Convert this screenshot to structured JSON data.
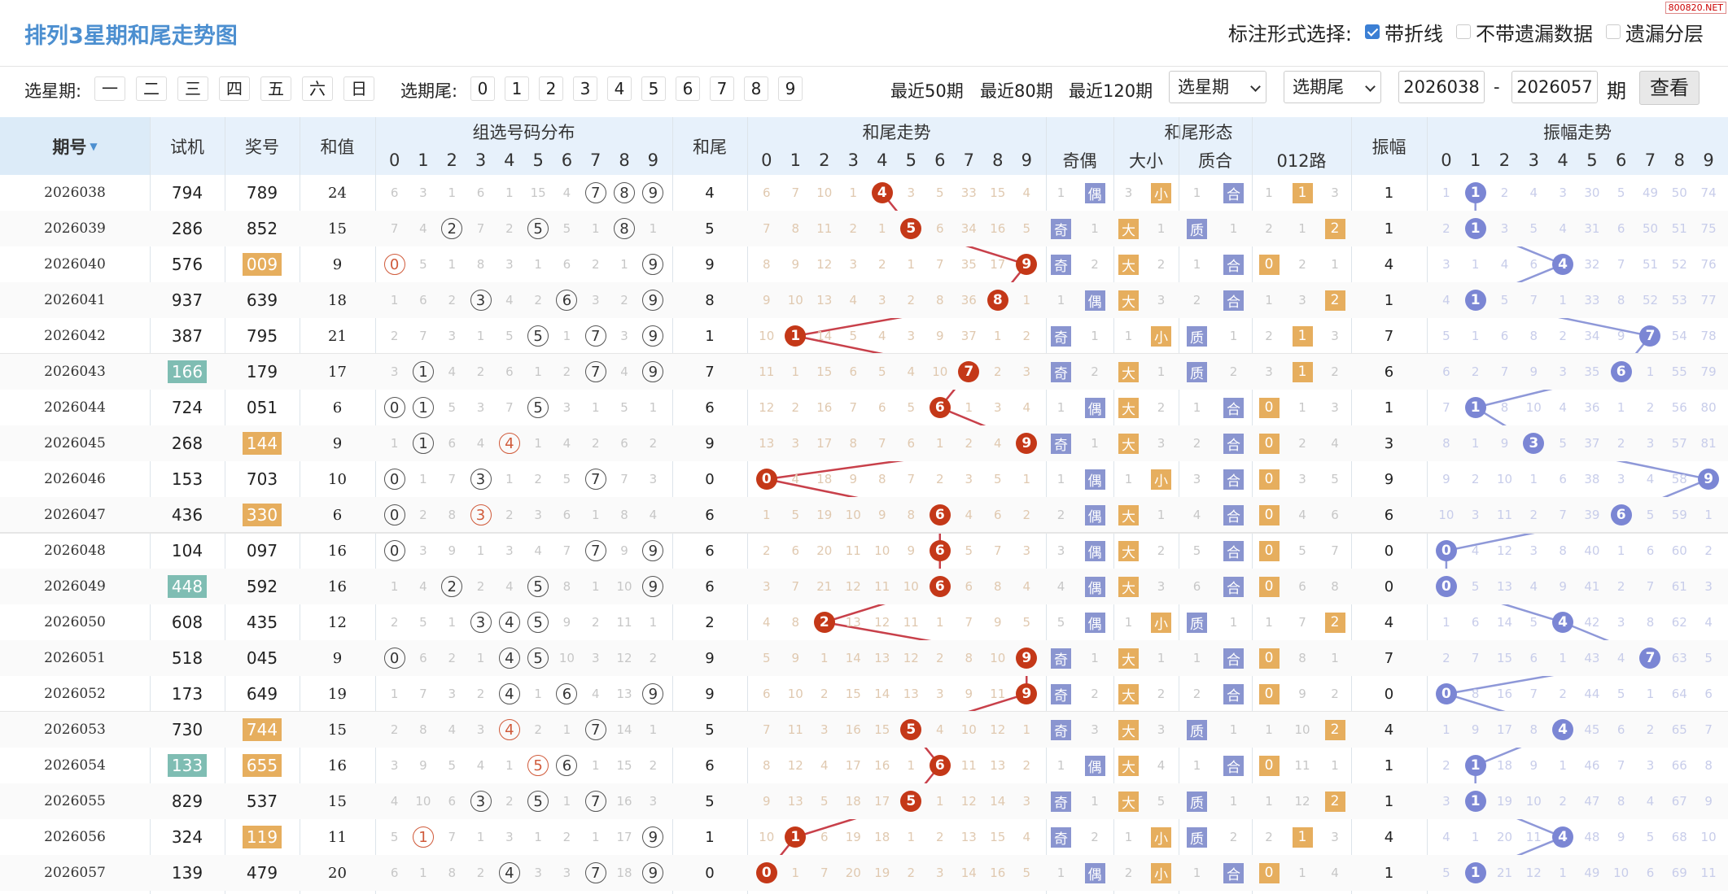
{
  "title": "排列3星期和尾走势图",
  "watermark": "800820.NET",
  "mark_label": "标注形式选择:",
  "mark_options": [
    {
      "label": "带折线",
      "checked": true
    },
    {
      "label": "不带遗漏数据",
      "checked": false
    },
    {
      "label": "遗漏分层",
      "checked": false
    }
  ],
  "filter": {
    "week_label": "选星期:",
    "weeks": [
      "一",
      "二",
      "三",
      "四",
      "五",
      "六",
      "日"
    ],
    "tail_label": "选期尾:",
    "tails": [
      "0",
      "1",
      "2",
      "3",
      "4",
      "5",
      "6",
      "7",
      "8",
      "9"
    ],
    "quick": [
      "最近50期",
      "最近80期",
      "最近120期"
    ],
    "week_select": "选星期",
    "tail_select": "选期尾",
    "from": "2026038",
    "to": "2026057",
    "dash": "-",
    "period": "期",
    "query": "查看"
  },
  "headers": {
    "issue": "期号",
    "trial": "试机",
    "prize": "奖号",
    "sum": "和值",
    "dist": "组选号码分布",
    "tail": "和尾",
    "trend": "和尾走势",
    "form": "和尾形态",
    "odd_even": "奇偶",
    "big_small": "大小",
    "prime": "质合",
    "route": "012路",
    "amp": "振幅",
    "amp_trend": "振幅走势",
    "digits": [
      "0",
      "1",
      "2",
      "3",
      "4",
      "5",
      "6",
      "7",
      "8",
      "9"
    ]
  },
  "colors": {
    "accent": "#4c8fd0",
    "tail_ball": "#c43818",
    "amp_ball": "#7b86d4",
    "tag_blue": "#8a95d0",
    "tag_orange": "#e6ae5e",
    "trial_hl": "#7fbdb3",
    "prize_hl": "#e6ae5e"
  },
  "rows": [
    {
      "issue": "2026038",
      "trial": "794",
      "trial_hl": false,
      "prize": "789",
      "prize_hl": false,
      "sum": "24",
      "tail": 4,
      "dist": [
        "6",
        "3",
        "1",
        "6",
        "1",
        "15",
        "4",
        "@7",
        "@8",
        "@9"
      ],
      "trend": [
        "6",
        "7",
        "10",
        "1",
        "*",
        "3",
        "5",
        "33",
        "15",
        "4"
      ],
      "form": [
        "1",
        "偶",
        "3",
        "小",
        "1",
        "合",
        "1",
        "1",
        "3"
      ],
      "amp": 1,
      "amp_trend": [
        "1",
        "*",
        "2",
        "4",
        "3",
        "30",
        "5",
        "49",
        "50",
        "74"
      ]
    },
    {
      "issue": "2026039",
      "trial": "286",
      "trial_hl": false,
      "prize": "852",
      "prize_hl": false,
      "sum": "15",
      "tail": 5,
      "dist": [
        "7",
        "4",
        "@2",
        "7",
        "2",
        "@5",
        "5",
        "1",
        "@8",
        "1"
      ],
      "trend": [
        "7",
        "8",
        "11",
        "2",
        "1",
        "*",
        "6",
        "34",
        "16",
        "5"
      ],
      "form": [
        "奇",
        "1",
        "大",
        "1",
        "质",
        "1",
        "2",
        "1",
        "2"
      ],
      "amp": 1,
      "amp_trend": [
        "2",
        "*",
        "3",
        "5",
        "4",
        "31",
        "6",
        "50",
        "51",
        "75"
      ]
    },
    {
      "issue": "2026040",
      "trial": "576",
      "trial_hl": false,
      "prize": "009",
      "prize_hl": true,
      "sum": "9",
      "tail": 9,
      "dist": [
        "!0",
        "5",
        "1",
        "8",
        "3",
        "1",
        "6",
        "2",
        "1",
        "@9"
      ],
      "trend": [
        "8",
        "9",
        "12",
        "3",
        "2",
        "1",
        "7",
        "35",
        "17",
        "*"
      ],
      "form": [
        "奇",
        "2",
        "大",
        "2",
        "1",
        "合",
        "0",
        "2",
        "1"
      ],
      "amp": 4,
      "amp_trend": [
        "3",
        "1",
        "4",
        "6",
        "*",
        "32",
        "7",
        "51",
        "52",
        "76"
      ]
    },
    {
      "issue": "2026041",
      "trial": "937",
      "trial_hl": false,
      "prize": "639",
      "prize_hl": false,
      "sum": "18",
      "tail": 8,
      "dist": [
        "1",
        "6",
        "2",
        "@3",
        "4",
        "2",
        "@6",
        "3",
        "2",
        "@9"
      ],
      "trend": [
        "9",
        "10",
        "13",
        "4",
        "3",
        "2",
        "8",
        "36",
        "*",
        "1"
      ],
      "form": [
        "1",
        "偶",
        "大",
        "3",
        "2",
        "合",
        "1",
        "3",
        "2"
      ],
      "amp": 1,
      "amp_trend": [
        "4",
        "*",
        "5",
        "7",
        "1",
        "33",
        "8",
        "52",
        "53",
        "77"
      ]
    },
    {
      "issue": "2026042",
      "trial": "387",
      "trial_hl": false,
      "prize": "795",
      "prize_hl": false,
      "sum": "21",
      "tail": 1,
      "dist": [
        "2",
        "7",
        "3",
        "1",
        "5",
        "@5",
        "1",
        "@7",
        "3",
        "@9"
      ],
      "trend": [
        "10",
        "*",
        "14",
        "5",
        "4",
        "3",
        "9",
        "37",
        "1",
        "2"
      ],
      "form": [
        "奇",
        "1",
        "1",
        "小",
        "质",
        "1",
        "2",
        "1",
        "3"
      ],
      "amp": 7,
      "amp_trend": [
        "5",
        "1",
        "6",
        "8",
        "2",
        "34",
        "9",
        "*",
        "54",
        "78"
      ]
    },
    {
      "issue": "2026043",
      "trial": "166",
      "trial_hl": true,
      "prize": "179",
      "prize_hl": false,
      "sum": "17",
      "tail": 7,
      "dist": [
        "3",
        "@1",
        "4",
        "2",
        "6",
        "1",
        "2",
        "@7",
        "4",
        "@9"
      ],
      "trend": [
        "11",
        "1",
        "15",
        "6",
        "5",
        "4",
        "10",
        "*",
        "2",
        "3"
      ],
      "form": [
        "奇",
        "2",
        "大",
        "1",
        "质",
        "2",
        "3",
        "1",
        "2"
      ],
      "amp": 6,
      "amp_trend": [
        "6",
        "2",
        "7",
        "9",
        "3",
        "35",
        "*",
        "1",
        "55",
        "79"
      ]
    },
    {
      "issue": "2026044",
      "trial": "724",
      "trial_hl": false,
      "prize": "051",
      "prize_hl": false,
      "sum": "6",
      "tail": 6,
      "dist": [
        "@0",
        "@1",
        "5",
        "3",
        "7",
        "@5",
        "3",
        "1",
        "5",
        "1"
      ],
      "trend": [
        "12",
        "2",
        "16",
        "7",
        "6",
        "5",
        "*",
        "1",
        "3",
        "4"
      ],
      "form": [
        "1",
        "偶",
        "大",
        "2",
        "1",
        "合",
        "0",
        "1",
        "3"
      ],
      "amp": 1,
      "amp_trend": [
        "7",
        "*",
        "8",
        "10",
        "4",
        "36",
        "1",
        "2",
        "56",
        "80"
      ]
    },
    {
      "issue": "2026045",
      "trial": "268",
      "trial_hl": false,
      "prize": "144",
      "prize_hl": true,
      "sum": "9",
      "tail": 9,
      "dist": [
        "1",
        "@1",
        "6",
        "4",
        "!4",
        "1",
        "4",
        "2",
        "6",
        "2"
      ],
      "trend": [
        "13",
        "3",
        "17",
        "8",
        "7",
        "6",
        "1",
        "2",
        "4",
        "*"
      ],
      "form": [
        "奇",
        "1",
        "大",
        "3",
        "2",
        "合",
        "0",
        "2",
        "4"
      ],
      "amp": 3,
      "amp_trend": [
        "8",
        "1",
        "9",
        "*",
        "5",
        "37",
        "2",
        "3",
        "57",
        "81"
      ]
    },
    {
      "issue": "2026046",
      "trial": "153",
      "trial_hl": false,
      "prize": "703",
      "prize_hl": false,
      "sum": "10",
      "tail": 0,
      "dist": [
        "@0",
        "1",
        "7",
        "@3",
        "1",
        "2",
        "5",
        "@7",
        "7",
        "3"
      ],
      "trend": [
        "*",
        "4",
        "18",
        "9",
        "8",
        "7",
        "2",
        "3",
        "5",
        "1"
      ],
      "form": [
        "1",
        "偶",
        "1",
        "小",
        "3",
        "合",
        "0",
        "3",
        "5"
      ],
      "amp": 9,
      "amp_trend": [
        "9",
        "2",
        "10",
        "1",
        "6",
        "38",
        "3",
        "4",
        "58",
        "*"
      ]
    },
    {
      "issue": "2026047",
      "trial": "436",
      "trial_hl": false,
      "prize": "330",
      "prize_hl": true,
      "sum": "6",
      "tail": 6,
      "dist": [
        "@0",
        "2",
        "8",
        "!3",
        "2",
        "3",
        "6",
        "1",
        "8",
        "4"
      ],
      "trend": [
        "1",
        "5",
        "19",
        "10",
        "9",
        "8",
        "*",
        "4",
        "6",
        "2"
      ],
      "form": [
        "2",
        "偶",
        "大",
        "1",
        "4",
        "合",
        "0",
        "4",
        "6"
      ],
      "amp": 6,
      "amp_trend": [
        "10",
        "3",
        "11",
        "2",
        "7",
        "39",
        "*",
        "5",
        "59",
        "1"
      ]
    },
    {
      "issue": "2026048",
      "trial": "104",
      "trial_hl": false,
      "prize": "097",
      "prize_hl": false,
      "sum": "16",
      "tail": 6,
      "dist": [
        "@0",
        "3",
        "9",
        "1",
        "3",
        "4",
        "7",
        "@7",
        "9",
        "@9"
      ],
      "trend": [
        "2",
        "6",
        "20",
        "11",
        "10",
        "9",
        "*",
        "5",
        "7",
        "3"
      ],
      "form": [
        "3",
        "偶",
        "大",
        "2",
        "5",
        "合",
        "0",
        "5",
        "7"
      ],
      "amp": 0,
      "amp_trend": [
        "*",
        "4",
        "12",
        "3",
        "8",
        "40",
        "1",
        "6",
        "60",
        "2"
      ]
    },
    {
      "issue": "2026049",
      "trial": "448",
      "trial_hl": true,
      "prize": "592",
      "prize_hl": false,
      "sum": "16",
      "tail": 6,
      "dist": [
        "1",
        "4",
        "@2",
        "2",
        "4",
        "@5",
        "8",
        "1",
        "10",
        "@9"
      ],
      "trend": [
        "3",
        "7",
        "21",
        "12",
        "11",
        "10",
        "*",
        "6",
        "8",
        "4"
      ],
      "form": [
        "4",
        "偶",
        "大",
        "3",
        "6",
        "合",
        "0",
        "6",
        "8"
      ],
      "amp": 0,
      "amp_trend": [
        "*",
        "5",
        "13",
        "4",
        "9",
        "41",
        "2",
        "7",
        "61",
        "3"
      ]
    },
    {
      "issue": "2026050",
      "trial": "608",
      "trial_hl": false,
      "prize": "435",
      "prize_hl": false,
      "sum": "12",
      "tail": 2,
      "dist": [
        "2",
        "5",
        "1",
        "@3",
        "@4",
        "@5",
        "9",
        "2",
        "11",
        "1"
      ],
      "trend": [
        "4",
        "8",
        "*",
        "13",
        "12",
        "11",
        "1",
        "7",
        "9",
        "5"
      ],
      "form": [
        "5",
        "偶",
        "1",
        "小",
        "质",
        "1",
        "1",
        "7",
        "2"
      ],
      "amp": 4,
      "amp_trend": [
        "1",
        "6",
        "14",
        "5",
        "*",
        "42",
        "3",
        "8",
        "62",
        "4"
      ]
    },
    {
      "issue": "2026051",
      "trial": "518",
      "trial_hl": false,
      "prize": "045",
      "prize_hl": false,
      "sum": "9",
      "tail": 9,
      "dist": [
        "@0",
        "6",
        "2",
        "1",
        "@4",
        "@5",
        "10",
        "3",
        "12",
        "2"
      ],
      "trend": [
        "5",
        "9",
        "1",
        "14",
        "13",
        "12",
        "2",
        "8",
        "10",
        "*"
      ],
      "form": [
        "奇",
        "1",
        "大",
        "1",
        "1",
        "合",
        "0",
        "8",
        "1"
      ],
      "amp": 7,
      "amp_trend": [
        "2",
        "7",
        "15",
        "6",
        "1",
        "43",
        "4",
        "*",
        "63",
        "5"
      ]
    },
    {
      "issue": "2026052",
      "trial": "173",
      "trial_hl": false,
      "prize": "649",
      "prize_hl": false,
      "sum": "19",
      "tail": 9,
      "dist": [
        "1",
        "7",
        "3",
        "2",
        "@4",
        "1",
        "@6",
        "4",
        "13",
        "@9"
      ],
      "trend": [
        "6",
        "10",
        "2",
        "15",
        "14",
        "13",
        "3",
        "9",
        "11",
        "*"
      ],
      "form": [
        "奇",
        "2",
        "大",
        "2",
        "2",
        "合",
        "0",
        "9",
        "2"
      ],
      "amp": 0,
      "amp_trend": [
        "*",
        "8",
        "16",
        "7",
        "2",
        "44",
        "5",
        "1",
        "64",
        "6"
      ]
    },
    {
      "issue": "2026053",
      "trial": "730",
      "trial_hl": false,
      "prize": "744",
      "prize_hl": true,
      "sum": "15",
      "tail": 5,
      "dist": [
        "2",
        "8",
        "4",
        "3",
        "!4",
        "2",
        "1",
        "@7",
        "14",
        "1"
      ],
      "trend": [
        "7",
        "11",
        "3",
        "16",
        "15",
        "*",
        "4",
        "10",
        "12",
        "1"
      ],
      "form": [
        "奇",
        "3",
        "大",
        "3",
        "质",
        "1",
        "1",
        "10",
        "2"
      ],
      "amp": 4,
      "amp_trend": [
        "1",
        "9",
        "17",
        "8",
        "*",
        "45",
        "6",
        "2",
        "65",
        "7"
      ]
    },
    {
      "issue": "2026054",
      "trial": "133",
      "trial_hl": true,
      "prize": "655",
      "prize_hl": true,
      "sum": "16",
      "tail": 6,
      "dist": [
        "3",
        "9",
        "5",
        "4",
        "1",
        "!5",
        "@6",
        "1",
        "15",
        "2"
      ],
      "trend": [
        "8",
        "12",
        "4",
        "17",
        "16",
        "1",
        "*",
        "11",
        "13",
        "2"
      ],
      "form": [
        "1",
        "偶",
        "大",
        "4",
        "1",
        "合",
        "0",
        "11",
        "1"
      ],
      "amp": 1,
      "amp_trend": [
        "2",
        "*",
        "18",
        "9",
        "1",
        "46",
        "7",
        "3",
        "66",
        "8"
      ]
    },
    {
      "issue": "2026055",
      "trial": "829",
      "trial_hl": false,
      "prize": "537",
      "prize_hl": false,
      "sum": "15",
      "tail": 5,
      "dist": [
        "4",
        "10",
        "6",
        "@3",
        "2",
        "@5",
        "1",
        "@7",
        "16",
        "3"
      ],
      "trend": [
        "9",
        "13",
        "5",
        "18",
        "17",
        "*",
        "1",
        "12",
        "14",
        "3"
      ],
      "form": [
        "奇",
        "1",
        "大",
        "5",
        "质",
        "1",
        "1",
        "12",
        "2"
      ],
      "amp": 1,
      "amp_trend": [
        "3",
        "*",
        "19",
        "10",
        "2",
        "47",
        "8",
        "4",
        "67",
        "9"
      ]
    },
    {
      "issue": "2026056",
      "trial": "324",
      "trial_hl": false,
      "prize": "119",
      "prize_hl": true,
      "sum": "11",
      "tail": 1,
      "dist": [
        "5",
        "!1",
        "7",
        "1",
        "3",
        "1",
        "2",
        "1",
        "17",
        "@9"
      ],
      "trend": [
        "10",
        "*",
        "6",
        "19",
        "18",
        "1",
        "2",
        "13",
        "15",
        "4"
      ],
      "form": [
        "奇",
        "2",
        "1",
        "小",
        "质",
        "2",
        "2",
        "1",
        "3"
      ],
      "amp": 4,
      "amp_trend": [
        "4",
        "1",
        "20",
        "11",
        "*",
        "48",
        "9",
        "5",
        "68",
        "10"
      ]
    },
    {
      "issue": "2026057",
      "trial": "139",
      "trial_hl": false,
      "prize": "479",
      "prize_hl": false,
      "sum": "20",
      "tail": 0,
      "dist": [
        "6",
        "1",
        "8",
        "2",
        "@4",
        "3",
        "3",
        "@7",
        "18",
        "@9"
      ],
      "trend": [
        "*",
        "1",
        "7",
        "20",
        "19",
        "2",
        "3",
        "14",
        "16",
        "5"
      ],
      "form": [
        "1",
        "偶",
        "2",
        "小",
        "1",
        "合",
        "0",
        "1",
        "4"
      ],
      "amp": 1,
      "amp_trend": [
        "5",
        "*",
        "21",
        "12",
        "1",
        "49",
        "10",
        "6",
        "69",
        "11"
      ]
    }
  ]
}
